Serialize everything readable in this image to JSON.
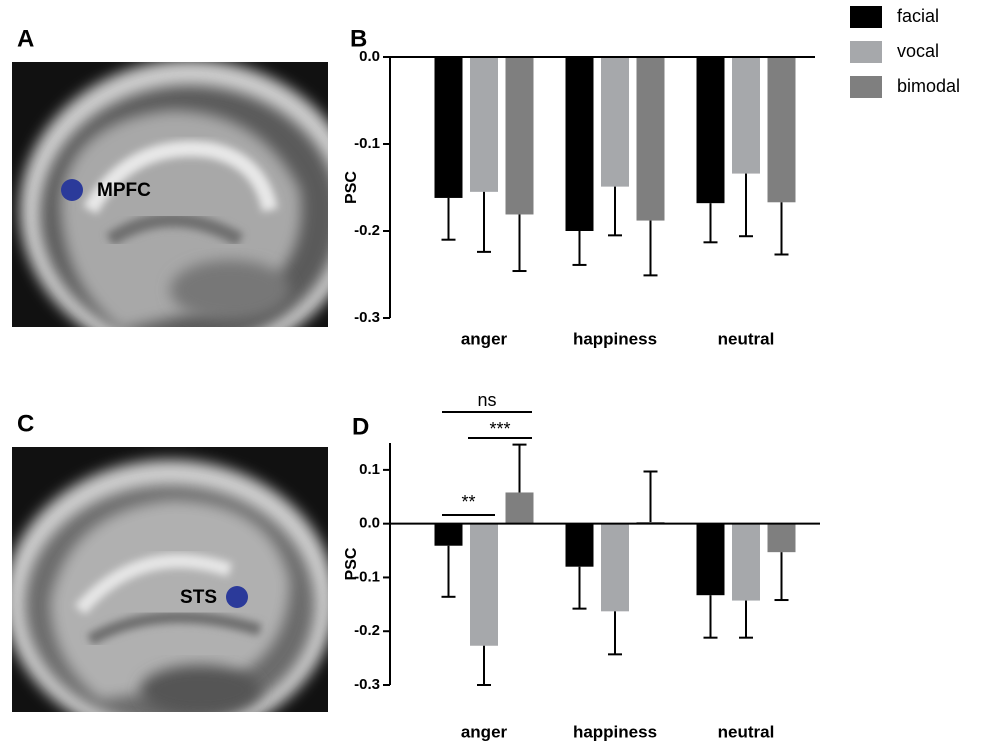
{
  "panels": [
    {
      "label": "A",
      "region": "MPFC"
    },
    {
      "label": "C",
      "region": "STS"
    }
  ],
  "chart_data": [
    {
      "type": "bar",
      "label": "B",
      "y_label": "PSC",
      "categories": [
        "anger",
        "happiness",
        "neutral"
      ],
      "series": [
        {
          "name": "facial",
          "color": "#000000",
          "values": [
            -0.162,
            -0.2,
            -0.168
          ],
          "errors": [
            0.048,
            0.039,
            0.045
          ]
        },
        {
          "name": "vocal",
          "color": "#a6a8ab",
          "values": [
            -0.155,
            -0.149,
            -0.134
          ],
          "errors": [
            0.069,
            0.056,
            0.072
          ]
        },
        {
          "name": "bimodal",
          "color": "#7f7f7f",
          "values": [
            -0.181,
            -0.188,
            -0.167
          ],
          "errors": [
            0.065,
            0.063,
            0.06
          ]
        }
      ],
      "ylim": [
        -0.3,
        0
      ],
      "yticks": [
        {
          "value": 0,
          "label": "0.0"
        },
        -0.1,
        -0.2,
        -0.3
      ],
      "legend": "top-right"
    },
    {
      "type": "bar",
      "label": "D",
      "y_label": "PSC",
      "categories": [
        "anger",
        "happiness",
        "neutral"
      ],
      "series": [
        {
          "name": "facial",
          "color": "#000000",
          "values": [
            -0.041,
            -0.08,
            -0.133
          ],
          "errors": [
            0.095,
            0.078,
            0.079
          ]
        },
        {
          "name": "vocal",
          "color": "#a6a8ab",
          "values": [
            -0.227,
            -0.163,
            -0.143
          ],
          "errors": [
            0.073,
            0.08,
            0.069
          ]
        },
        {
          "name": "bimodal",
          "color": "#7f7f7f",
          "values": [
            0.058,
            0.003,
            -0.053
          ],
          "errors": [
            0.089,
            0.094,
            0.089
          ]
        }
      ],
      "ylim": [
        -0.3,
        0.15
      ],
      "yticks": [
        0.1,
        {
          "value": 0,
          "label": "0.0"
        },
        -0.1,
        -0.2,
        -0.3
      ],
      "annotations": [
        "**",
        "***",
        "ns"
      ]
    }
  ]
}
